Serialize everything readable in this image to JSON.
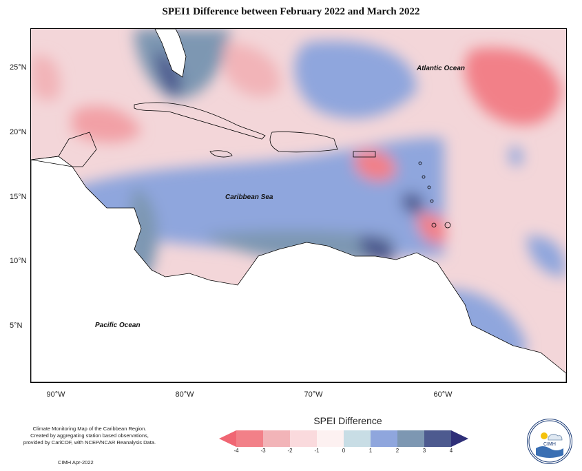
{
  "title": "SPEI1 Difference between February 2022 and March 2022",
  "lat_labels": [
    "25°N",
    "20°N",
    "15°N",
    "10°N",
    "5°N"
  ],
  "lon_labels": [
    "90°W",
    "80°W",
    "70°W",
    "60°W"
  ],
  "places": {
    "atlantic": "Atlantic Ocean",
    "caribbean": "Caribbean Sea",
    "pacific": "Pacific Ocean"
  },
  "credit_lines": [
    "Climate Monitoring Map of the Caribbean Region.",
    "Created by aggregating station based observations,",
    "provided by CariCOF, with NCEP/NCAR Reanalysis Data."
  ],
  "credit_date": "CIMH Apr-2022",
  "legend": {
    "title": "SPEI Difference",
    "ticks": [
      "-4",
      "-3",
      "-2",
      "-1",
      "0",
      "1",
      "2",
      "3",
      "4"
    ],
    "colors": [
      "#f28088",
      "#f2b4b8",
      "#fadadd",
      "#fdf1f1",
      "#c8dde5",
      "#8fa6dd",
      "#7d97b2",
      "#4d5a8f"
    ],
    "end_colors": [
      "#f06673",
      "#2e2f78"
    ]
  },
  "logo_text": "CIMH"
}
